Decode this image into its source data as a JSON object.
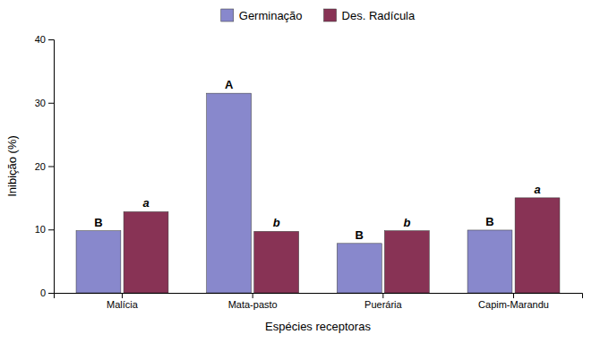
{
  "chart_data": {
    "type": "bar",
    "categories": [
      "Malícia",
      "Mata-pasto",
      "Puerária",
      "Capim-Marandu"
    ],
    "series": [
      {
        "name": "Germinação",
        "color": "#8888CC",
        "values": [
          9.8,
          31.5,
          7.8,
          9.9
        ],
        "annotations": [
          "B",
          "A",
          "B",
          "B"
        ]
      },
      {
        "name": "Des. Radícula",
        "color": "#883355",
        "values": [
          12.8,
          9.7,
          9.8,
          15.0
        ],
        "annotations": [
          "a",
          "b",
          "b",
          "a"
        ]
      }
    ],
    "x_label": "Espécies receptoras",
    "y_label": "Inibição (%)",
    "ylim": [
      0,
      40
    ],
    "yticks": [
      0,
      10,
      20,
      30,
      40
    ],
    "grid": false,
    "legend": "top"
  }
}
